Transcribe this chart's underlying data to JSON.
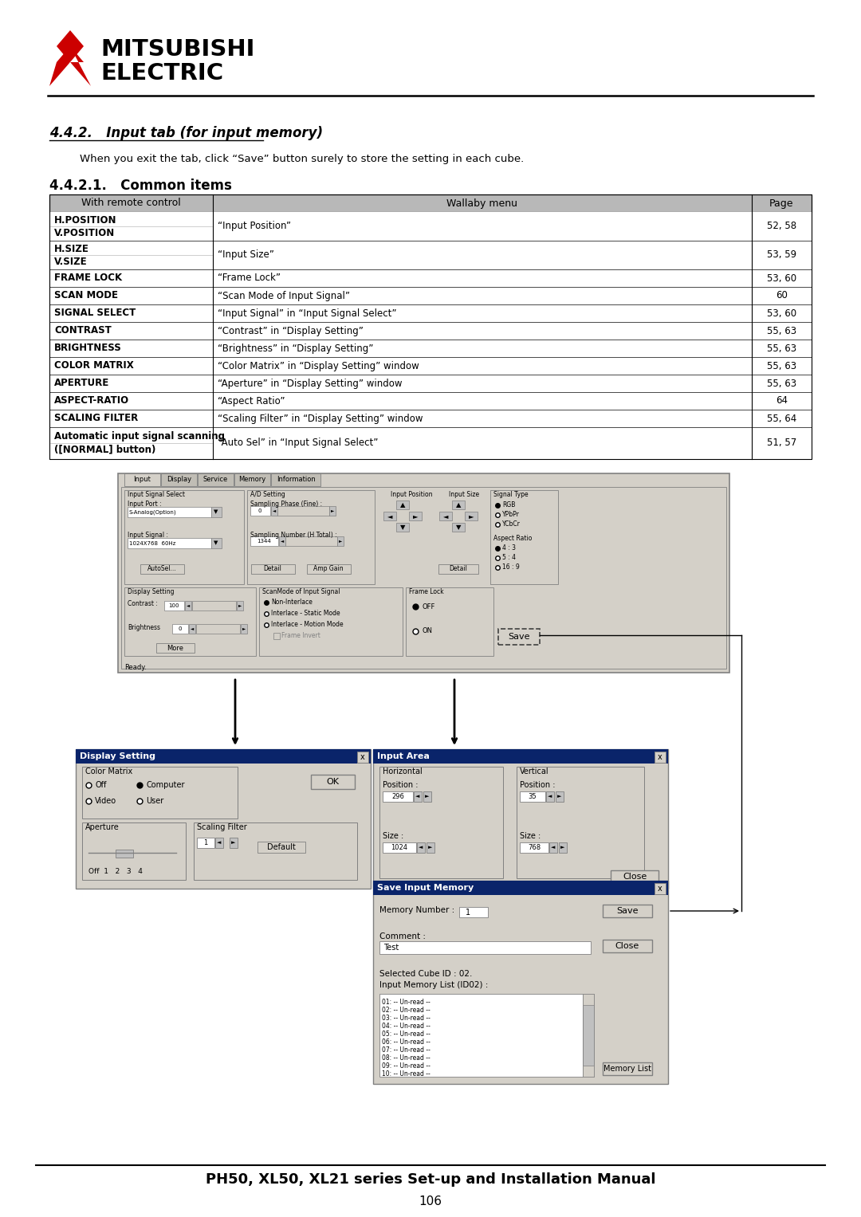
{
  "title_442": "4.4.2.   Input tab (for input memory)",
  "subtitle_text": "When you exit the tab, click “Save” button surely to store the setting in each cube.",
  "section_title": "4.4.2.1.   Common items",
  "table_headers": [
    "With remote control",
    "Wallaby menu",
    "Page"
  ],
  "table_rows": [
    [
      "H.POSITION\nV.POSITION",
      "“Input Position”",
      "52, 58"
    ],
    [
      "H.SIZE\nV.SIZE",
      "“Input Size”",
      "53, 59"
    ],
    [
      "FRAME LOCK",
      "“Frame Lock”",
      "53, 60"
    ],
    [
      "SCAN MODE",
      "“Scan Mode of Input Signal”",
      "60"
    ],
    [
      "SIGNAL SELECT",
      "“Input Signal” in “Input Signal Select”",
      "53, 60"
    ],
    [
      "CONTRAST",
      "“Contrast” in “Display Setting”",
      "55, 63"
    ],
    [
      "BRIGHTNESS",
      "“Brightness” in “Display Setting”",
      "55, 63"
    ],
    [
      "COLOR MATRIX",
      "“Color Matrix” in “Display Setting” window",
      "55, 63"
    ],
    [
      "APERTURE",
      "“Aperture” in “Display Setting” window",
      "55, 63"
    ],
    [
      "ASPECT-RATIO",
      "“Aspect Ratio”",
      "64"
    ],
    [
      "SCALING FILTER",
      "“Scaling Filter” in “Display Setting” window",
      "55, 64"
    ],
    [
      "Automatic input signal scanning\n([NORMAL] button)",
      "“Auto Sel” in “Input Signal Select”",
      "51, 57"
    ]
  ],
  "footer_text": "PH50, XL50, XL21 series Set-up and Installation Manual",
  "page_number": "106",
  "bg_color": "#ffffff",
  "logo_text_1": "MITSUBISHI",
  "logo_text_2": "ELECTRIC"
}
